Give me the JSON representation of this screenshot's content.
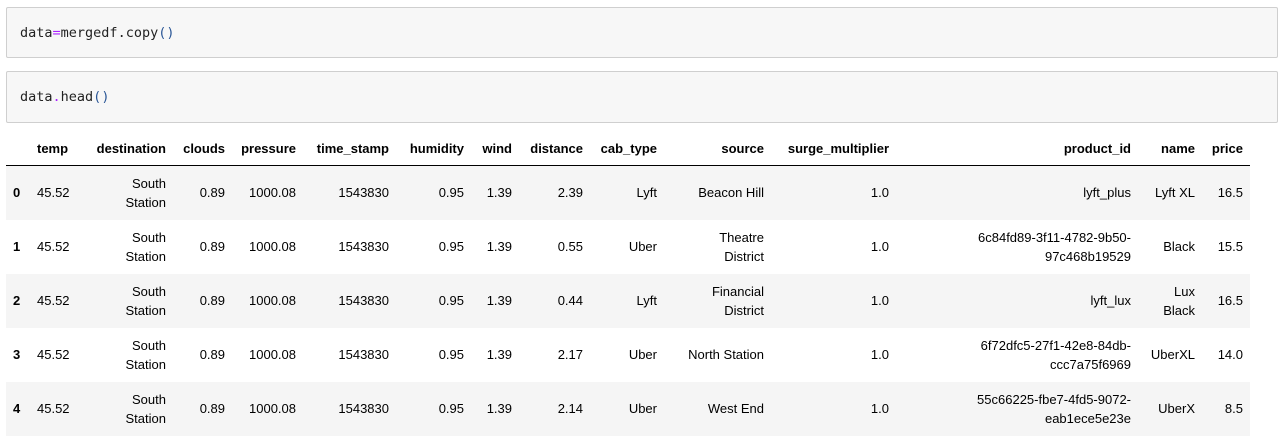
{
  "cells": [
    {
      "tokens": [
        "data",
        "=",
        "mergedf",
        ".copy",
        "(",
        ")"
      ]
    },
    {
      "tokens": [
        "data",
        ".",
        "head",
        "(",
        ")"
      ]
    }
  ],
  "dataframe": {
    "columns": [
      "temp",
      "destination",
      "clouds",
      "pressure",
      "time_stamp",
      "humidity",
      "wind",
      "distance",
      "cab_type",
      "source",
      "surge_multiplier",
      "product_id",
      "name",
      "price"
    ],
    "rows": [
      {
        "index": "0",
        "temp": "45.52",
        "destination": [
          "South",
          "Station"
        ],
        "clouds": "0.89",
        "pressure": "1000.08",
        "time_stamp": "1543830",
        "humidity": "0.95",
        "wind": "1.39",
        "distance": "2.39",
        "cab_type": "Lyft",
        "source": [
          "Beacon Hill"
        ],
        "surge_multiplier": "1.0",
        "product_id": [
          "lyft_plus"
        ],
        "name": [
          "Lyft XL"
        ],
        "price": "16.5"
      },
      {
        "index": "1",
        "temp": "45.52",
        "destination": [
          "South",
          "Station"
        ],
        "clouds": "0.89",
        "pressure": "1000.08",
        "time_stamp": "1543830",
        "humidity": "0.95",
        "wind": "1.39",
        "distance": "0.55",
        "cab_type": "Uber",
        "source": [
          "Theatre",
          "District"
        ],
        "surge_multiplier": "1.0",
        "product_id": [
          "6c84fd89-3f11-4782-9b50-",
          "97c468b19529"
        ],
        "name": [
          "Black"
        ],
        "price": "15.5"
      },
      {
        "index": "2",
        "temp": "45.52",
        "destination": [
          "South",
          "Station"
        ],
        "clouds": "0.89",
        "pressure": "1000.08",
        "time_stamp": "1543830",
        "humidity": "0.95",
        "wind": "1.39",
        "distance": "0.44",
        "cab_type": "Lyft",
        "source": [
          "Financial",
          "District"
        ],
        "surge_multiplier": "1.0",
        "product_id": [
          "lyft_lux"
        ],
        "name": [
          "Lux",
          "Black"
        ],
        "price": "16.5"
      },
      {
        "index": "3",
        "temp": "45.52",
        "destination": [
          "South",
          "Station"
        ],
        "clouds": "0.89",
        "pressure": "1000.08",
        "time_stamp": "1543830",
        "humidity": "0.95",
        "wind": "1.39",
        "distance": "2.17",
        "cab_type": "Uber",
        "source": [
          "North Station"
        ],
        "surge_multiplier": "1.0",
        "product_id": [
          "6f72dfc5-27f1-42e8-84db-",
          "ccc7a75f6969"
        ],
        "name": [
          "UberXL"
        ],
        "price": "14.0"
      },
      {
        "index": "4",
        "temp": "45.52",
        "destination": [
          "South",
          "Station"
        ],
        "clouds": "0.89",
        "pressure": "1000.08",
        "time_stamp": "1543830",
        "humidity": "0.95",
        "wind": "1.39",
        "distance": "2.14",
        "cab_type": "Uber",
        "source": [
          "West End"
        ],
        "surge_multiplier": "1.0",
        "product_id": [
          "55c66225-fbe7-4fd5-9072-",
          "eab1ece5e23e"
        ],
        "name": [
          "UberX"
        ],
        "price": "8.5"
      }
    ]
  }
}
